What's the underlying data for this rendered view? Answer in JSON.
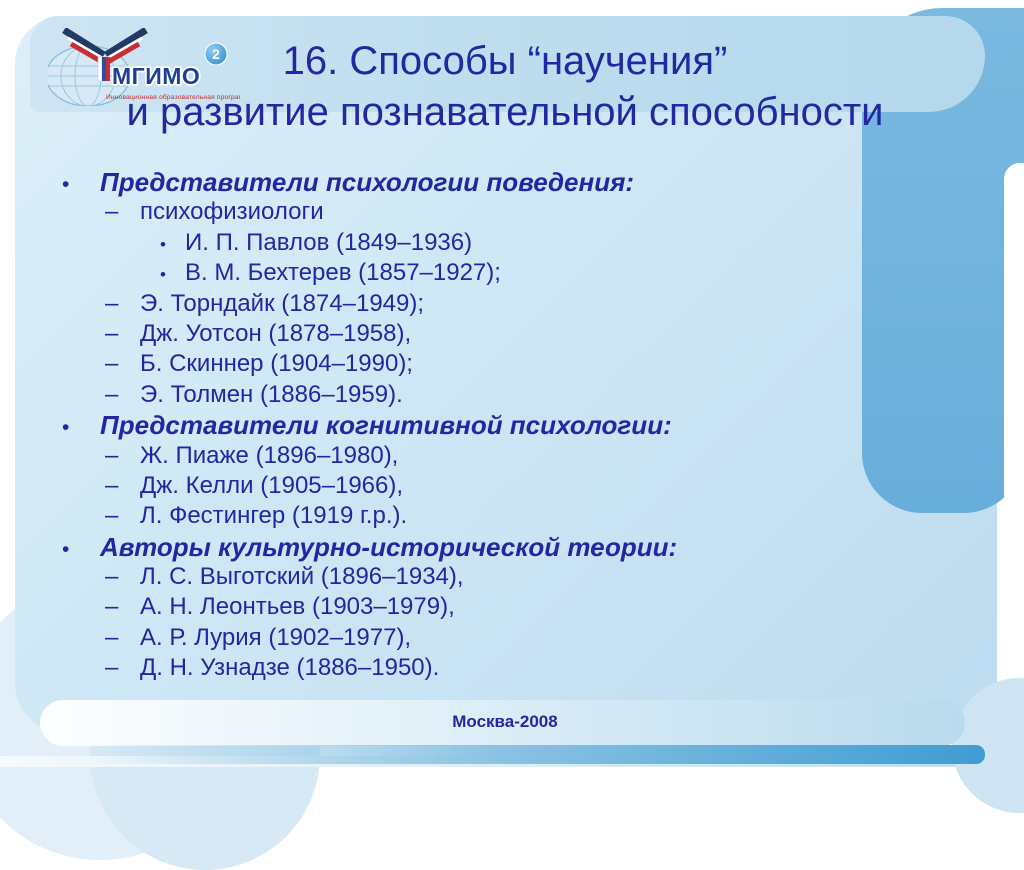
{
  "logo": {
    "acronym": "МГИМО",
    "superscript": "2",
    "tagline": "Инновационная образовательная программа"
  },
  "title": {
    "line1": "16. Способы “научения”",
    "line2": "и развитие познавательной способности"
  },
  "list": {
    "items": [
      {
        "level": 1,
        "marker": "•",
        "text": "Представители психологии поведения:"
      },
      {
        "level": 2,
        "marker": "–",
        "text": "психофизиологи"
      },
      {
        "level": 3,
        "marker": "•",
        "text": "И. П. Павлов (1849–1936)"
      },
      {
        "level": 3,
        "marker": "•",
        "text": "В. М. Бехтерев (1857–1927);"
      },
      {
        "level": 2,
        "marker": "–",
        "text": "Э. Торндайк (1874–1949);"
      },
      {
        "level": 2,
        "marker": "–",
        "text": "Дж. Уотсон (1878–1958),"
      },
      {
        "level": 2,
        "marker": "–",
        "text": "Б. Скиннер (1904–1990);"
      },
      {
        "level": 2,
        "marker": "–",
        "text": "Э. Толмен (1886–1959)."
      },
      {
        "level": 1,
        "marker": "•",
        "text": "Представители когнитивной психологии:"
      },
      {
        "level": 2,
        "marker": "–",
        "text": "Ж. Пиаже (1896–1980),"
      },
      {
        "level": 2,
        "marker": "–",
        "text": "Дж. Келли (1905–1966),"
      },
      {
        "level": 2,
        "marker": "–",
        "text": "Л. Фестингер (1919 г.р.)."
      },
      {
        "level": 1,
        "marker": "•",
        "text": "Авторы культурно-исторической теории:"
      },
      {
        "level": 2,
        "marker": "–",
        "text": "Л. С. Выготский (1896–1934),"
      },
      {
        "level": 2,
        "marker": "–",
        "text": "А. Н. Леонтьев (1903–1979),"
      },
      {
        "level": 2,
        "marker": "–",
        "text": "А. Р. Лурия (1902–1977),"
      },
      {
        "level": 2,
        "marker": "–",
        "text": "Д. Н. Узнадзе (1886–1950)."
      }
    ]
  },
  "footer": {
    "text": "Москва-2008"
  },
  "colors": {
    "navy": "#2128a2",
    "accent_blue": "#6db2dc",
    "panel_blue": "#cfe7f5",
    "band_blue": "#b9dbee",
    "logo_red": "#c0272d"
  }
}
